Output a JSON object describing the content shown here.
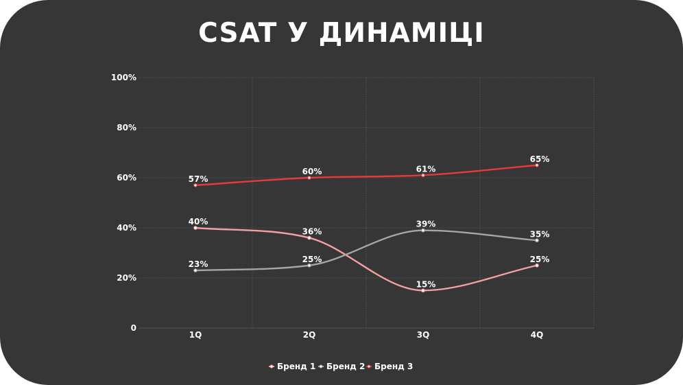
{
  "title": "CSAT У ДИНАМІЦІ",
  "chart_data": {
    "type": "line",
    "categories": [
      "1Q",
      "2Q",
      "3Q",
      "4Q"
    ],
    "y_ticks": [
      "0",
      "20%",
      "40%",
      "60%",
      "80%",
      "100%"
    ],
    "ylim": [
      0,
      100
    ],
    "grid": true,
    "legend_position": "bottom",
    "series": [
      {
        "name": "Бренд 1",
        "color": "#f4a0a0",
        "values": [
          40,
          36,
          15,
          25
        ],
        "labels": [
          "40%",
          "36%",
          "15%",
          "25%"
        ]
      },
      {
        "name": "Бренд 2",
        "color": "#a6a6a6",
        "values": [
          23,
          25,
          39,
          35
        ],
        "labels": [
          "23%",
          "25%",
          "39%",
          "35%"
        ]
      },
      {
        "name": "Бренд 3",
        "color": "#e83a3a",
        "values": [
          57,
          60,
          61,
          65
        ],
        "labels": [
          "57%",
          "60%",
          "61%",
          "65%"
        ]
      }
    ]
  }
}
